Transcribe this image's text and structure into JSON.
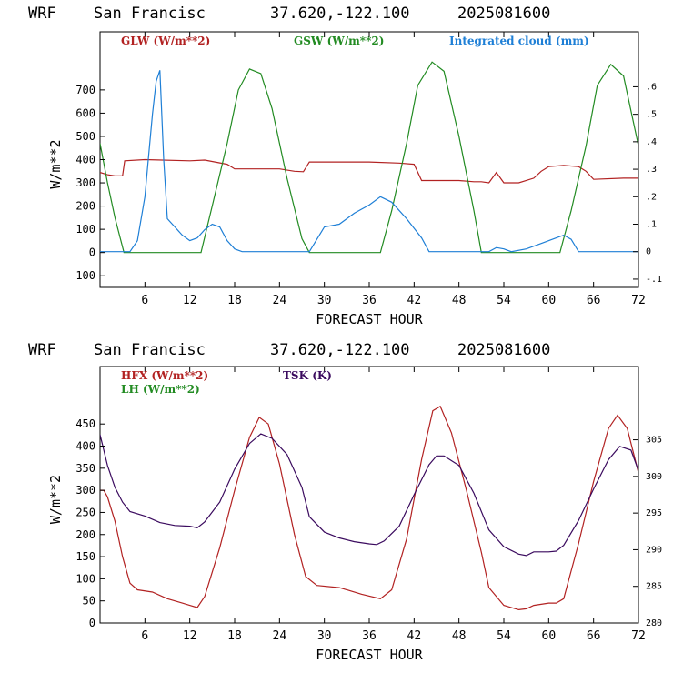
{
  "app": {
    "name": "WRF"
  },
  "panels": [
    {
      "title": {
        "model": "WRF",
        "station": "San Francisc",
        "latlon": "37.620,-122.100",
        "init": "2025081600"
      },
      "legend": [
        {
          "label": "GLW (W/m**2)",
          "color": "#b22222"
        },
        {
          "label": "GSW (W/m**2)",
          "color": "#228b22"
        },
        {
          "label": "Integrated cloud (mm)",
          "color": "#1e7fd6"
        }
      ]
    },
    {
      "title": {
        "model": "WRF",
        "station": "San Francisc",
        "latlon": "37.620,-122.100",
        "init": "2025081600"
      },
      "legend": [
        {
          "label": "HFX (W/m**2)",
          "color": "#b22222"
        },
        {
          "label": "LH  (W/m**2)",
          "color": "#228b22"
        },
        {
          "label": "TSK (K)",
          "color": "#3a0a5e"
        }
      ]
    }
  ],
  "chart_data": [
    {
      "type": "line",
      "xlabel": "FORECAST HOUR",
      "ylabel": "W/m**2",
      "xlim": [
        0,
        72
      ],
      "ylim": [
        -150,
        950
      ],
      "y2lim": [
        -0.13,
        0.8
      ],
      "x_ticks": [
        6,
        12,
        18,
        24,
        30,
        36,
        42,
        48,
        54,
        60,
        66,
        72
      ],
      "y_ticks": [
        -100,
        0,
        100,
        200,
        300,
        400,
        500,
        600,
        700
      ],
      "y2_ticks": [
        -0.1,
        0,
        0.1,
        0.2,
        0.3,
        0.4,
        0.5,
        0.6
      ],
      "y2_tick_labels": [
        "-.1",
        "0",
        ".1",
        ".2",
        ".3",
        ".4",
        ".5",
        ".6"
      ],
      "grid": false,
      "legend_position": "top",
      "series": [
        {
          "name": "GLW (W/m**2)",
          "axis": "left",
          "color": "#b22222",
          "x": [
            0,
            1,
            2,
            3,
            3.3,
            6,
            12,
            14,
            17,
            18,
            24,
            26,
            27.2,
            28,
            36,
            40,
            42,
            43,
            48,
            50,
            51,
            52,
            53,
            54,
            56,
            58,
            59,
            60,
            62,
            64,
            65,
            66,
            70,
            72
          ],
          "y": [
            345,
            335,
            330,
            330,
            395,
            400,
            395,
            398,
            380,
            360,
            360,
            350,
            348,
            390,
            390,
            385,
            380,
            310,
            310,
            305,
            305,
            300,
            345,
            300,
            300,
            320,
            350,
            370,
            375,
            370,
            350,
            315,
            320,
            320
          ]
        },
        {
          "name": "GSW (W/m**2)",
          "axis": "left",
          "color": "#228b22",
          "x": [
            0,
            1,
            2,
            3.2,
            13.5,
            15,
            17,
            18.5,
            20,
            21.5,
            23,
            25,
            27,
            28,
            37.5,
            39,
            41,
            42.5,
            44.4,
            46,
            48,
            50,
            51,
            61.5,
            63,
            65,
            66.5,
            68.3,
            70,
            72
          ],
          "y": [
            470,
            300,
            150,
            0,
            0,
            200,
            470,
            700,
            790,
            770,
            620,
            320,
            60,
            0,
            0,
            180,
            470,
            720,
            820,
            780,
            500,
            180,
            0,
            0,
            180,
            460,
            720,
            810,
            760,
            460
          ]
        },
        {
          "name": "Integrated cloud (mm)",
          "axis": "right",
          "color": "#1e7fd6",
          "x": [
            0,
            4,
            5,
            6,
            7,
            7.5,
            8,
            8.5,
            9,
            10,
            11,
            12,
            13,
            14,
            15,
            16,
            17,
            18,
            19,
            28,
            30,
            32,
            34,
            36,
            37.5,
            39,
            41,
            43,
            44,
            52,
            53,
            54,
            55,
            57,
            59,
            61,
            62,
            63,
            64,
            72
          ],
          "y": [
            0,
            0,
            0.04,
            0.2,
            0.5,
            0.62,
            0.66,
            0.34,
            0.12,
            0.09,
            0.06,
            0.04,
            0.05,
            0.08,
            0.1,
            0.09,
            0.04,
            0.01,
            0,
            0,
            0.09,
            0.1,
            0.14,
            0.17,
            0.2,
            0.18,
            0.12,
            0.05,
            0,
            0,
            0.015,
            0.01,
            0,
            0.01,
            0.03,
            0.05,
            0.06,
            0.045,
            0,
            0
          ]
        }
      ]
    },
    {
      "type": "line",
      "xlabel": "FORECAST HOUR",
      "ylabel": "W/m**2",
      "xlim": [
        0,
        72
      ],
      "ylim": [
        0,
        580
      ],
      "y2lim": [
        280,
        315
      ],
      "x_ticks": [
        6,
        12,
        18,
        24,
        30,
        36,
        42,
        48,
        54,
        60,
        66,
        72
      ],
      "y_ticks": [
        0,
        50,
        100,
        150,
        200,
        250,
        300,
        350,
        400,
        450
      ],
      "y2_ticks": [
        280,
        285,
        290,
        295,
        300,
        305
      ],
      "y2_tick_labels": [
        "280",
        "285",
        "290",
        "295",
        "300",
        "305"
      ],
      "grid": false,
      "legend_position": "top-left",
      "series": [
        {
          "name": "HFX (W/m**2)",
          "axis": "left",
          "color": "#b22222",
          "x": [
            0,
            0.5,
            1,
            2,
            3,
            4,
            5,
            7,
            9,
            11,
            12,
            13,
            14,
            16,
            18,
            20,
            21.3,
            22.5,
            24,
            26,
            27.5,
            29,
            32,
            35,
            37.5,
            39,
            41,
            43,
            44.5,
            45.5,
            47,
            49,
            51,
            52,
            54,
            56,
            57,
            58,
            60,
            61,
            62,
            64,
            66,
            68,
            69.2,
            70.5,
            72
          ],
          "y": [
            300,
            300,
            285,
            230,
            150,
            90,
            75,
            70,
            55,
            45,
            40,
            35,
            60,
            170,
            300,
            420,
            465,
            450,
            360,
            200,
            105,
            85,
            80,
            65,
            55,
            75,
            190,
            370,
            480,
            490,
            430,
            300,
            160,
            80,
            40,
            30,
            32,
            40,
            45,
            45,
            55,
            180,
            320,
            440,
            470,
            440,
            340
          ]
        },
        {
          "name": "TSK (K)",
          "axis": "right",
          "color": "#3a0a5e",
          "x": [
            0,
            1,
            2,
            3,
            4,
            6,
            8,
            10,
            12,
            13,
            14,
            16,
            18,
            20,
            21.5,
            23,
            25,
            27,
            28,
            30,
            32,
            34,
            36,
            37,
            38,
            40,
            42,
            44,
            45,
            46,
            48,
            50,
            52,
            54,
            56,
            57,
            58,
            60,
            61,
            62,
            64,
            66,
            68,
            69.5,
            71,
            72
          ],
          "y": [
            305.7,
            301.5,
            298.5,
            296.5,
            295.2,
            294.6,
            293.7,
            293.3,
            293.2,
            293,
            293.8,
            296.5,
            301,
            304.5,
            305.8,
            305.2,
            303,
            298.5,
            294.5,
            292.4,
            291.6,
            291.1,
            290.8,
            290.7,
            291.2,
            293.2,
            297.5,
            301.6,
            302.8,
            302.8,
            301.5,
            297.7,
            292.7,
            290.4,
            289.4,
            289.2,
            289.7,
            289.7,
            289.8,
            290.6,
            294,
            298.3,
            302.3,
            304.1,
            303.6,
            300.8
          ]
        }
      ]
    }
  ]
}
